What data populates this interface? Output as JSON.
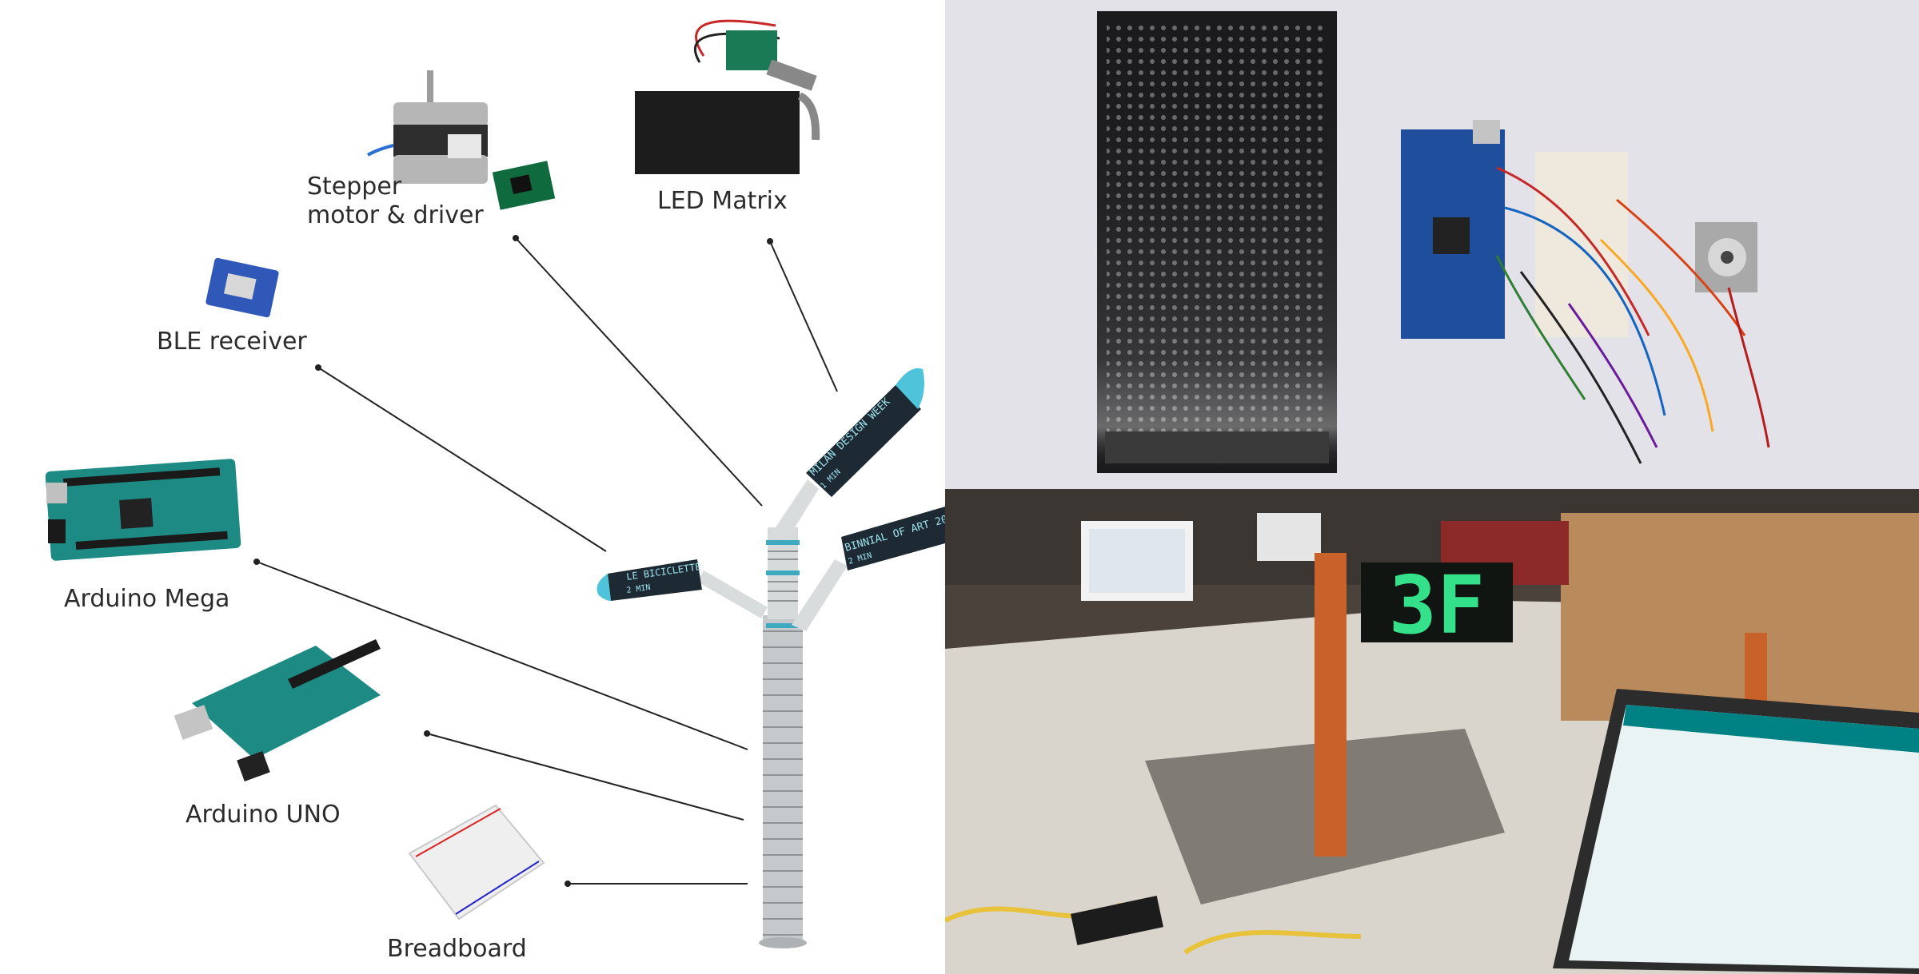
{
  "components": {
    "stepper": {
      "line1": "Stepper",
      "line2": "motor & driver"
    },
    "led_matrix": "LED Matrix",
    "ble_receiver": "BLE receiver",
    "arduino_mega": "Arduino Mega",
    "arduino_uno": "Arduino UNO",
    "breadboard": "Breadboard"
  },
  "pole_signs": {
    "sign_upper": "MILAN DESIGN WEEK",
    "sign_upper_sub": "1 MIN",
    "sign_right": "BINNIAL OF ART 20",
    "sign_right_sub": "2 MIN",
    "sign_left": "LE BICICLETTE",
    "sign_left_sub": "2 MIN"
  },
  "prototype_display": "3F",
  "colors": {
    "accent": "#4fc3d9",
    "pole": "#c9ccce",
    "board_green": "#1e8a84",
    "board_blue": "#1f4f9c",
    "led_green": "#35e08a"
  },
  "icons": [
    "stepper-motor-icon",
    "led-matrix-icon",
    "ble-module-icon",
    "arduino-mega-icon",
    "arduino-uno-icon",
    "breadboard-icon"
  ]
}
